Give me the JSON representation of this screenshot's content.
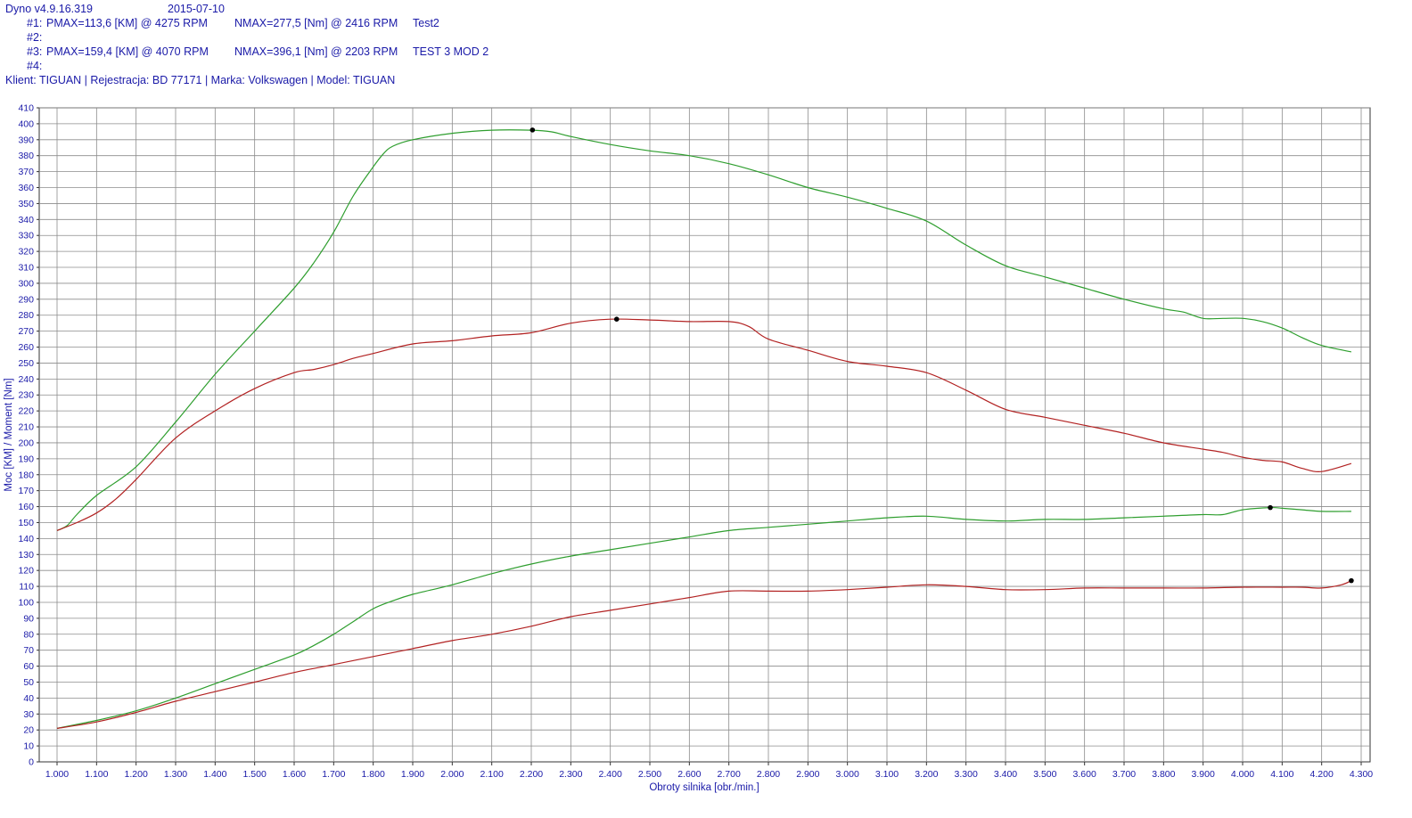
{
  "header": {
    "app_version": "Dyno v4.9.16.319",
    "date": "2015-07-10",
    "runs": [
      {
        "id": "#1:",
        "pmax": "PMAX=113,6 [KM] @ 4275 RPM",
        "nmax": "NMAX=277,5 [Nm] @ 2416 RPM",
        "name": "Test2"
      },
      {
        "id": "#2:",
        "pmax": "",
        "nmax": "",
        "name": ""
      },
      {
        "id": "#3:",
        "pmax": "PMAX=159,4 [KM] @ 4070 RPM",
        "nmax": "NMAX=396,1 [Nm] @ 2203 RPM",
        "name": "TEST 3 MOD 2"
      },
      {
        "id": "#4:",
        "pmax": "",
        "nmax": "",
        "name": ""
      }
    ],
    "client_line": "Klient: TIGUAN | Rejestracja: BD 77171 | Marka: Volkswagen | Model: TIGUAN"
  },
  "colors": {
    "text": "#1a1aa8",
    "grid": "#8c8c8c",
    "run1": "#b22222",
    "run3": "#2e9e2e",
    "marker": "#000000"
  },
  "chart_data": {
    "type": "line",
    "xlabel": "Obroty silnika [obr./min.]",
    "ylabel": "Moc [KM] / Moment [Nm]",
    "xlim": [
      1000,
      4300
    ],
    "ylim": [
      0,
      410
    ],
    "x_ticks": [
      "1.000",
      "1.100",
      "1.200",
      "1.300",
      "1.400",
      "1.500",
      "1.600",
      "1.700",
      "1.800",
      "1.900",
      "2.000",
      "2.100",
      "2.200",
      "2.300",
      "2.400",
      "2.500",
      "2.600",
      "2.700",
      "2.800",
      "2.900",
      "3.000",
      "3.100",
      "3.200",
      "3.300",
      "3.400",
      "3.500",
      "3.600",
      "3.700",
      "3.800",
      "3.900",
      "4.000",
      "4.100",
      "4.200",
      "4.300"
    ],
    "y_ticks": [
      0,
      10,
      20,
      30,
      40,
      50,
      60,
      70,
      80,
      90,
      100,
      110,
      120,
      130,
      140,
      150,
      160,
      170,
      180,
      190,
      200,
      210,
      220,
      230,
      240,
      250,
      260,
      270,
      280,
      290,
      300,
      310,
      320,
      330,
      340,
      350,
      360,
      370,
      380,
      390,
      400,
      410
    ],
    "grid": true,
    "series": [
      {
        "run": "#3",
        "quantity": "torque",
        "color": "#2e9e2e",
        "x": [
          1000,
          1025,
          1050,
          1100,
          1200,
          1300,
          1400,
          1500,
          1600,
          1650,
          1700,
          1750,
          1800,
          1825,
          1850,
          1900,
          2000,
          2100,
          2200,
          2250,
          2300,
          2400,
          2500,
          2600,
          2700,
          2800,
          2900,
          3000,
          3100,
          3200,
          3300,
          3400,
          3500,
          3600,
          3700,
          3800,
          3850,
          3900,
          3950,
          4000,
          4050,
          4100,
          4150,
          4200,
          4275
        ],
        "y": [
          145,
          148,
          155,
          167,
          185,
          213,
          243,
          270,
          297,
          313,
          332,
          355,
          373,
          381,
          386,
          390,
          394,
          396,
          396,
          395,
          392,
          387,
          383,
          380,
          375,
          368,
          360,
          354,
          347,
          339,
          324,
          311,
          304,
          297,
          290,
          284,
          282,
          278,
          278,
          278,
          276,
          272,
          266,
          261,
          257
        ],
        "marker": {
          "x": 2203,
          "y": 396.1
        }
      },
      {
        "run": "#1",
        "quantity": "torque",
        "color": "#b22222",
        "x": [
          1000,
          1050,
          1100,
          1150,
          1200,
          1300,
          1400,
          1500,
          1600,
          1650,
          1700,
          1750,
          1800,
          1900,
          2000,
          2100,
          2200,
          2300,
          2400,
          2500,
          2600,
          2700,
          2750,
          2800,
          2900,
          3000,
          3100,
          3200,
          3300,
          3400,
          3500,
          3600,
          3700,
          3800,
          3900,
          3950,
          4000,
          4050,
          4100,
          4150,
          4200,
          4275
        ],
        "y": [
          145,
          150,
          156,
          165,
          177,
          203,
          220,
          234,
          244,
          246,
          249,
          253,
          256,
          262,
          264,
          267,
          269,
          275,
          277.5,
          277,
          276,
          276,
          273,
          265,
          258,
          251,
          248,
          244,
          233,
          221,
          216,
          211,
          206,
          200,
          196,
          194,
          191,
          189,
          188,
          184,
          182,
          187
        ],
        "marker": {
          "x": 2416,
          "y": 277.5
        }
      },
      {
        "run": "#3",
        "quantity": "power",
        "color": "#2e9e2e",
        "x": [
          1000,
          1100,
          1200,
          1300,
          1400,
          1500,
          1600,
          1650,
          1700,
          1750,
          1800,
          1850,
          1900,
          2000,
          2100,
          2200,
          2300,
          2400,
          2500,
          2600,
          2700,
          2800,
          2900,
          3000,
          3100,
          3200,
          3300,
          3400,
          3500,
          3600,
          3700,
          3800,
          3900,
          3950,
          4000,
          4070,
          4100,
          4150,
          4200,
          4275
        ],
        "y": [
          21,
          26,
          32,
          40,
          49,
          58,
          67,
          73,
          80,
          88,
          96,
          101,
          105,
          111,
          118,
          124,
          129,
          133,
          137,
          141,
          145,
          147,
          149,
          151,
          153,
          154,
          152,
          151,
          152,
          152,
          153,
          154,
          155,
          155,
          158,
          159.4,
          159,
          158,
          157,
          157
        ],
        "marker": {
          "x": 4070,
          "y": 159.4
        }
      },
      {
        "run": "#1",
        "quantity": "power",
        "color": "#b22222",
        "x": [
          1000,
          1100,
          1200,
          1300,
          1400,
          1500,
          1600,
          1700,
          1800,
          1900,
          2000,
          2100,
          2200,
          2300,
          2400,
          2500,
          2600,
          2700,
          2800,
          2900,
          3000,
          3100,
          3200,
          3300,
          3400,
          3500,
          3600,
          3700,
          3800,
          3900,
          4000,
          4100,
          4150,
          4200,
          4250,
          4275
        ],
        "y": [
          21,
          25,
          31,
          38,
          44,
          50,
          56,
          61,
          66,
          71,
          76,
          80,
          85,
          91,
          95,
          99,
          103,
          107,
          107,
          107,
          108,
          109.5,
          111,
          110,
          108,
          108,
          109,
          109,
          109,
          109,
          109.5,
          109.5,
          109.5,
          109,
          111,
          113.6
        ],
        "marker": {
          "x": 4275,
          "y": 113.6
        }
      }
    ]
  }
}
